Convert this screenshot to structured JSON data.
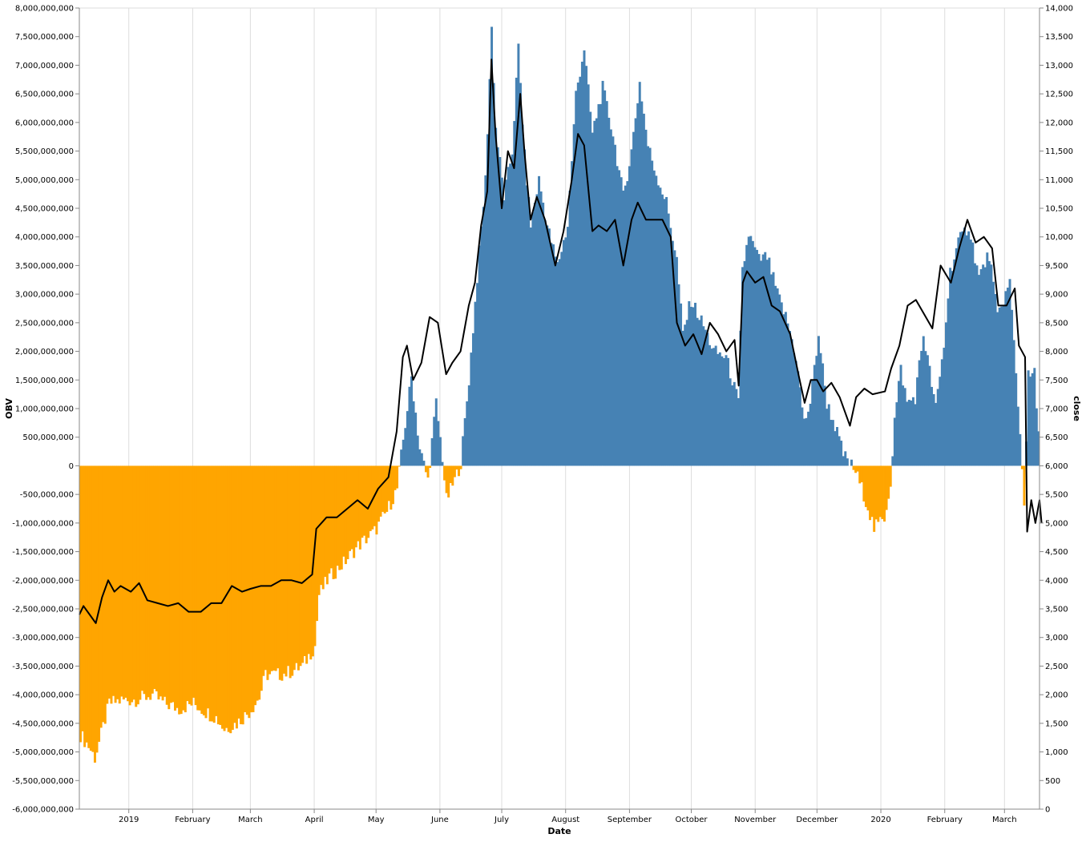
{
  "chart_data": {
    "type": "bar",
    "xlabel": "Date",
    "y_left_label": "OBV",
    "y_right_label": "close",
    "grid": true,
    "x_tick_labels": [
      "2019",
      "February",
      "March",
      "April",
      "May",
      "June",
      "July",
      "August",
      "September",
      "October",
      "November",
      "December",
      "2020",
      "February",
      "March"
    ],
    "x_range": [
      "2018-12-08",
      "2020-03-18"
    ],
    "y_left_range": [
      -6000000000,
      8000000000
    ],
    "y_left_ticks": [
      "8,000,000,000",
      "7,500,000,000",
      "7,000,000,000",
      "6,500,000,000",
      "6,000,000,000",
      "5,500,000,000",
      "5,000,000,000",
      "4,500,000,000",
      "4,000,000,000",
      "3,500,000,000",
      "3,000,000,000",
      "2,500,000,000",
      "2,000,000,000",
      "1,500,000,000",
      "1,000,000,000",
      "500,000,000",
      "0",
      "-500,000,000",
      "-1,000,000,000",
      "-1,500,000,000",
      "-2,000,000,000",
      "-2,500,000,000",
      "-3,000,000,000",
      "-3,500,000,000",
      "-4,000,000,000",
      "-4,500,000,000",
      "-5,000,000,000",
      "-5,500,000,000",
      "-6,000,000,000"
    ],
    "y_right_range": [
      0,
      14000
    ],
    "y_right_ticks": [
      "14,000",
      "13,500",
      "13,000",
      "12,500",
      "12,000",
      "11,500",
      "11,000",
      "10,500",
      "10,000",
      "9,500",
      "9,000",
      "8,500",
      "8,000",
      "7,500",
      "7,000",
      "6,500",
      "6,000",
      "5,500",
      "5,000",
      "4,500",
      "4,000",
      "3,500",
      "3,000",
      "2,500",
      "2,000",
      "1,500",
      "1,000",
      "500",
      "0"
    ],
    "positive_color": "#4682b4",
    "negative_color": "#ffa500",
    "line_color": "#000000",
    "series": [
      {
        "name": "OBV",
        "points": [
          [
            "2018-12-08",
            -4700000000
          ],
          [
            "2018-12-12",
            -4900000000
          ],
          [
            "2018-12-15",
            -5100000000
          ],
          [
            "2018-12-18",
            -4700000000
          ],
          [
            "2018-12-22",
            -4150000000
          ],
          [
            "2018-12-28",
            -4100000000
          ],
          [
            "2019-01-05",
            -4080000000
          ],
          [
            "2019-01-12",
            -4000000000
          ],
          [
            "2019-01-18",
            -4150000000
          ],
          [
            "2019-01-25",
            -4250000000
          ],
          [
            "2019-02-01",
            -4150000000
          ],
          [
            "2019-02-07",
            -4300000000
          ],
          [
            "2019-02-12",
            -4400000000
          ],
          [
            "2019-02-16",
            -4600000000
          ],
          [
            "2019-02-22",
            -4500000000
          ],
          [
            "2019-02-28",
            -4300000000
          ],
          [
            "2019-03-05",
            -4050000000
          ],
          [
            "2019-03-08",
            -3650000000
          ],
          [
            "2019-03-15",
            -3650000000
          ],
          [
            "2019-03-20",
            -3600000000
          ],
          [
            "2019-03-26",
            -3500000000
          ],
          [
            "2019-04-01",
            -3150000000
          ],
          [
            "2019-04-03",
            -2250000000
          ],
          [
            "2019-04-08",
            -1950000000
          ],
          [
            "2019-04-15",
            -1700000000
          ],
          [
            "2019-04-22",
            -1400000000
          ],
          [
            "2019-04-30",
            -1150000000
          ],
          [
            "2019-05-06",
            -800000000
          ],
          [
            "2019-05-11",
            -400000000
          ],
          [
            "2019-05-14",
            450000000
          ],
          [
            "2019-05-18",
            1550000000
          ],
          [
            "2019-05-22",
            300000000
          ],
          [
            "2019-05-26",
            -250000000
          ],
          [
            "2019-05-30",
            1100000000
          ],
          [
            "2019-06-02",
            150000000
          ],
          [
            "2019-06-04",
            -600000000
          ],
          [
            "2019-06-08",
            -250000000
          ],
          [
            "2019-06-11",
            50000000
          ],
          [
            "2019-06-15",
            1500000000
          ],
          [
            "2019-06-19",
            3300000000
          ],
          [
            "2019-06-23",
            5000000000
          ],
          [
            "2019-06-26",
            7650000000
          ],
          [
            "2019-06-28",
            5900000000
          ],
          [
            "2019-07-02",
            4700000000
          ],
          [
            "2019-07-06",
            5500000000
          ],
          [
            "2019-07-09",
            7300000000
          ],
          [
            "2019-07-12",
            5400000000
          ],
          [
            "2019-07-15",
            4200000000
          ],
          [
            "2019-07-19",
            5000000000
          ],
          [
            "2019-07-23",
            4200000000
          ],
          [
            "2019-07-28",
            3500000000
          ],
          [
            "2019-08-02",
            4200000000
          ],
          [
            "2019-08-06",
            6500000000
          ],
          [
            "2019-08-10",
            7300000000
          ],
          [
            "2019-08-14",
            5800000000
          ],
          [
            "2019-08-19",
            6600000000
          ],
          [
            "2019-08-24",
            5800000000
          ],
          [
            "2019-08-29",
            4700000000
          ],
          [
            "2019-09-02",
            5500000000
          ],
          [
            "2019-09-06",
            6700000000
          ],
          [
            "2019-09-10",
            5600000000
          ],
          [
            "2019-09-14",
            5100000000
          ],
          [
            "2019-09-19",
            4600000000
          ],
          [
            "2019-09-24",
            3600000000
          ],
          [
            "2019-09-27",
            2300000000
          ],
          [
            "2019-10-01",
            2900000000
          ],
          [
            "2019-10-07",
            2450000000
          ],
          [
            "2019-10-12",
            2000000000
          ],
          [
            "2019-10-18",
            1900000000
          ],
          [
            "2019-10-24",
            1100000000
          ],
          [
            "2019-10-26",
            3400000000
          ],
          [
            "2019-10-29",
            4050000000
          ],
          [
            "2019-11-03",
            3600000000
          ],
          [
            "2019-11-07",
            3650000000
          ],
          [
            "2019-11-12",
            3000000000
          ],
          [
            "2019-11-17",
            2500000000
          ],
          [
            "2019-11-21",
            1900000000
          ],
          [
            "2019-11-25",
            750000000
          ],
          [
            "2019-11-28",
            1100000000
          ],
          [
            "2019-12-02",
            2300000000
          ],
          [
            "2019-12-06",
            1100000000
          ],
          [
            "2019-12-10",
            700000000
          ],
          [
            "2019-12-14",
            200000000
          ],
          [
            "2019-12-20",
            -100000000
          ],
          [
            "2019-12-25",
            -600000000
          ],
          [
            "2019-12-29",
            -1100000000
          ],
          [
            "2020-01-03",
            -900000000
          ],
          [
            "2020-01-06",
            -300000000
          ],
          [
            "2020-01-08",
            800000000
          ],
          [
            "2020-01-11",
            1700000000
          ],
          [
            "2020-01-14",
            1100000000
          ],
          [
            "2020-01-18",
            1200000000
          ],
          [
            "2020-01-22",
            2300000000
          ],
          [
            "2020-01-28",
            1000000000
          ],
          [
            "2020-02-01",
            2100000000
          ],
          [
            "2020-02-04",
            3400000000
          ],
          [
            "2020-02-08",
            3900000000
          ],
          [
            "2020-02-13",
            4200000000
          ],
          [
            "2020-02-18",
            3300000000
          ],
          [
            "2020-02-23",
            3700000000
          ],
          [
            "2020-02-27",
            2600000000
          ],
          [
            "2020-03-04",
            3200000000
          ],
          [
            "2020-03-08",
            1100000000
          ],
          [
            "2020-03-11",
            -600000000
          ],
          [
            "2020-03-13",
            1550000000
          ],
          [
            "2020-03-16",
            1600000000
          ],
          [
            "2020-03-18",
            500000000
          ]
        ]
      },
      {
        "name": "close",
        "points": [
          [
            "2018-12-08",
            3400
          ],
          [
            "2018-12-10",
            3550
          ],
          [
            "2018-12-13",
            3400
          ],
          [
            "2018-12-16",
            3250
          ],
          [
            "2018-12-19",
            3700
          ],
          [
            "2018-12-22",
            4000
          ],
          [
            "2018-12-25",
            3800
          ],
          [
            "2018-12-28",
            3900
          ],
          [
            "2019-01-02",
            3800
          ],
          [
            "2019-01-06",
            3950
          ],
          [
            "2019-01-10",
            3650
          ],
          [
            "2019-01-15",
            3600
          ],
          [
            "2019-01-20",
            3550
          ],
          [
            "2019-01-25",
            3600
          ],
          [
            "2019-01-30",
            3450
          ],
          [
            "2019-02-05",
            3450
          ],
          [
            "2019-02-10",
            3600
          ],
          [
            "2019-02-15",
            3600
          ],
          [
            "2019-02-20",
            3900
          ],
          [
            "2019-02-25",
            3800
          ],
          [
            "2019-03-01",
            3850
          ],
          [
            "2019-03-06",
            3900
          ],
          [
            "2019-03-11",
            3900
          ],
          [
            "2019-03-16",
            4000
          ],
          [
            "2019-03-21",
            4000
          ],
          [
            "2019-03-26",
            3950
          ],
          [
            "2019-03-31",
            4100
          ],
          [
            "2019-04-02",
            4900
          ],
          [
            "2019-04-07",
            5100
          ],
          [
            "2019-04-12",
            5100
          ],
          [
            "2019-04-17",
            5250
          ],
          [
            "2019-04-22",
            5400
          ],
          [
            "2019-04-27",
            5250
          ],
          [
            "2019-05-02",
            5600
          ],
          [
            "2019-05-07",
            5800
          ],
          [
            "2019-05-11",
            6600
          ],
          [
            "2019-05-14",
            7900
          ],
          [
            "2019-05-16",
            8100
          ],
          [
            "2019-05-19",
            7500
          ],
          [
            "2019-05-23",
            7800
          ],
          [
            "2019-05-27",
            8600
          ],
          [
            "2019-05-31",
            8500
          ],
          [
            "2019-06-04",
            7600
          ],
          [
            "2019-06-07",
            7800
          ],
          [
            "2019-06-11",
            8000
          ],
          [
            "2019-06-15",
            8800
          ],
          [
            "2019-06-18",
            9200
          ],
          [
            "2019-06-21",
            10200
          ],
          [
            "2019-06-24",
            10800
          ],
          [
            "2019-06-26",
            13100
          ],
          [
            "2019-06-28",
            11800
          ],
          [
            "2019-07-01",
            10500
          ],
          [
            "2019-07-04",
            11500
          ],
          [
            "2019-07-07",
            11200
          ],
          [
            "2019-07-10",
            12500
          ],
          [
            "2019-07-12",
            11500
          ],
          [
            "2019-07-15",
            10300
          ],
          [
            "2019-07-18",
            10700
          ],
          [
            "2019-07-22",
            10300
          ],
          [
            "2019-07-27",
            9500
          ],
          [
            "2019-07-31",
            10100
          ],
          [
            "2019-08-04",
            11000
          ],
          [
            "2019-08-07",
            11800
          ],
          [
            "2019-08-10",
            11600
          ],
          [
            "2019-08-14",
            10100
          ],
          [
            "2019-08-17",
            10200
          ],
          [
            "2019-08-21",
            10100
          ],
          [
            "2019-08-25",
            10300
          ],
          [
            "2019-08-29",
            9500
          ],
          [
            "2019-09-02",
            10300
          ],
          [
            "2019-09-05",
            10600
          ],
          [
            "2019-09-09",
            10300
          ],
          [
            "2019-09-13",
            10300
          ],
          [
            "2019-09-17",
            10300
          ],
          [
            "2019-09-21",
            10000
          ],
          [
            "2019-09-24",
            8500
          ],
          [
            "2019-09-28",
            8100
          ],
          [
            "2019-10-02",
            8300
          ],
          [
            "2019-10-06",
            7950
          ],
          [
            "2019-10-10",
            8500
          ],
          [
            "2019-10-14",
            8300
          ],
          [
            "2019-10-18",
            8000
          ],
          [
            "2019-10-22",
            8200
          ],
          [
            "2019-10-24",
            7400
          ],
          [
            "2019-10-26",
            9200
          ],
          [
            "2019-10-28",
            9400
          ],
          [
            "2019-11-01",
            9200
          ],
          [
            "2019-11-05",
            9300
          ],
          [
            "2019-11-09",
            8800
          ],
          [
            "2019-11-13",
            8700
          ],
          [
            "2019-11-18",
            8300
          ],
          [
            "2019-11-22",
            7600
          ],
          [
            "2019-11-25",
            7100
          ],
          [
            "2019-11-28",
            7500
          ],
          [
            "2019-12-01",
            7500
          ],
          [
            "2019-12-04",
            7300
          ],
          [
            "2019-12-08",
            7450
          ],
          [
            "2019-12-12",
            7200
          ],
          [
            "2019-12-17",
            6700
          ],
          [
            "2019-12-20",
            7200
          ],
          [
            "2019-12-24",
            7350
          ],
          [
            "2019-12-28",
            7250
          ],
          [
            "2020-01-03",
            7300
          ],
          [
            "2020-01-06",
            7700
          ],
          [
            "2020-01-10",
            8100
          ],
          [
            "2020-01-14",
            8800
          ],
          [
            "2020-01-18",
            8900
          ],
          [
            "2020-01-22",
            8650
          ],
          [
            "2020-01-26",
            8400
          ],
          [
            "2020-01-30",
            9500
          ],
          [
            "2020-02-04",
            9200
          ],
          [
            "2020-02-08",
            9800
          ],
          [
            "2020-02-12",
            10300
          ],
          [
            "2020-02-16",
            9900
          ],
          [
            "2020-02-20",
            10000
          ],
          [
            "2020-02-24",
            9800
          ],
          [
            "2020-02-27",
            8800
          ],
          [
            "2020-03-02",
            8800
          ],
          [
            "2020-03-06",
            9100
          ],
          [
            "2020-03-08",
            8100
          ],
          [
            "2020-03-11",
            7900
          ],
          [
            "2020-03-12",
            4850
          ],
          [
            "2020-03-14",
            5400
          ],
          [
            "2020-03-16",
            5000
          ],
          [
            "2020-03-18",
            5400
          ],
          [
            "2020-03-19",
            5000
          ]
        ]
      }
    ]
  }
}
